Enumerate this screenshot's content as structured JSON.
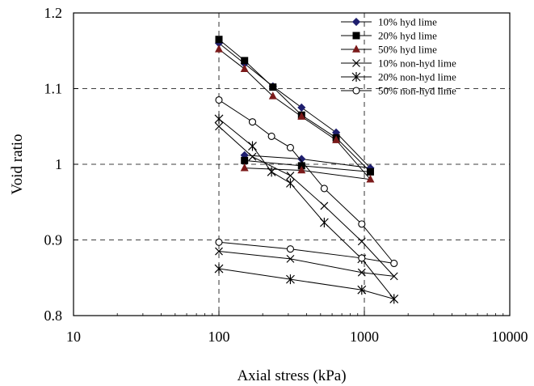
{
  "chart_data": {
    "type": "scatter",
    "title": "",
    "xlabel": "Axial stress (kPa)",
    "ylabel": "Void ratio",
    "x_scale": "log",
    "xlim": [
      10,
      10000
    ],
    "ylim": [
      0.8,
      1.2
    ],
    "x_ticks": [
      10,
      100,
      1000,
      10000
    ],
    "x_tick_labels": [
      "10",
      "100",
      "1000",
      "10000"
    ],
    "y_ticks": [
      0.8,
      0.9,
      1.0,
      1.1,
      1.2
    ],
    "y_tick_labels": [
      "0.8",
      "0.9",
      "1",
      "1.1",
      "1.2"
    ],
    "grid": "dashed at x=100, x=1000 and y=0.9, 1.0, 1.1",
    "legend_position": "top-right",
    "series": [
      {
        "name": "10% hyd lime",
        "marker": "diamond",
        "color": "#1f1f6e",
        "points": [
          [
            100,
            1.16
          ],
          [
            150,
            1.133
          ],
          [
            235,
            1.103
          ],
          [
            370,
            1.075
          ],
          [
            640,
            1.042
          ],
          [
            1100,
            0.995
          ],
          [
            370,
            1.007
          ],
          [
            150,
            1.012
          ]
        ]
      },
      {
        "name": "20% hyd lime",
        "marker": "square",
        "color": "#000000",
        "points": [
          [
            100,
            1.165
          ],
          [
            150,
            1.137
          ],
          [
            235,
            1.102
          ],
          [
            370,
            1.065
          ],
          [
            640,
            1.035
          ],
          [
            1100,
            0.99
          ],
          [
            370,
            0.998
          ],
          [
            150,
            1.005
          ]
        ]
      },
      {
        "name": "50% hyd lime",
        "marker": "triangle",
        "color": "#7b1a1a",
        "points": [
          [
            100,
            1.152
          ],
          [
            150,
            1.126
          ],
          [
            235,
            1.09
          ],
          [
            370,
            1.063
          ],
          [
            640,
            1.032
          ],
          [
            1100,
            0.98
          ],
          [
            370,
            0.992
          ],
          [
            150,
            0.995
          ]
        ]
      },
      {
        "name": "10% non-hyd lime",
        "marker": "x",
        "color": "#000000",
        "points": [
          [
            100,
            1.05
          ],
          [
            170,
            1.01
          ],
          [
            310,
            0.985
          ],
          [
            530,
            0.945
          ],
          [
            960,
            0.898
          ],
          [
            1600,
            0.852
          ],
          [
            960,
            0.857
          ],
          [
            310,
            0.875
          ],
          [
            100,
            0.885
          ]
        ]
      },
      {
        "name": "20% non-hyd lime",
        "marker": "asterisk",
        "color": "#000000",
        "points": [
          [
            100,
            1.06
          ],
          [
            170,
            1.024
          ],
          [
            230,
            0.99
          ],
          [
            310,
            0.975
          ],
          [
            530,
            0.923
          ],
          [
            960,
            0.875
          ],
          [
            1600,
            0.822
          ],
          [
            960,
            0.834
          ],
          [
            310,
            0.848
          ],
          [
            100,
            0.862
          ]
        ]
      },
      {
        "name": "50% non-hyd lime",
        "marker": "circle-open",
        "color": "#000000",
        "points": [
          [
            100,
            1.085
          ],
          [
            170,
            1.056
          ],
          [
            230,
            1.037
          ],
          [
            310,
            1.022
          ],
          [
            530,
            0.968
          ],
          [
            960,
            0.921
          ],
          [
            1600,
            0.869
          ],
          [
            960,
            0.876
          ],
          [
            310,
            0.888
          ],
          [
            100,
            0.897
          ]
        ]
      }
    ]
  }
}
